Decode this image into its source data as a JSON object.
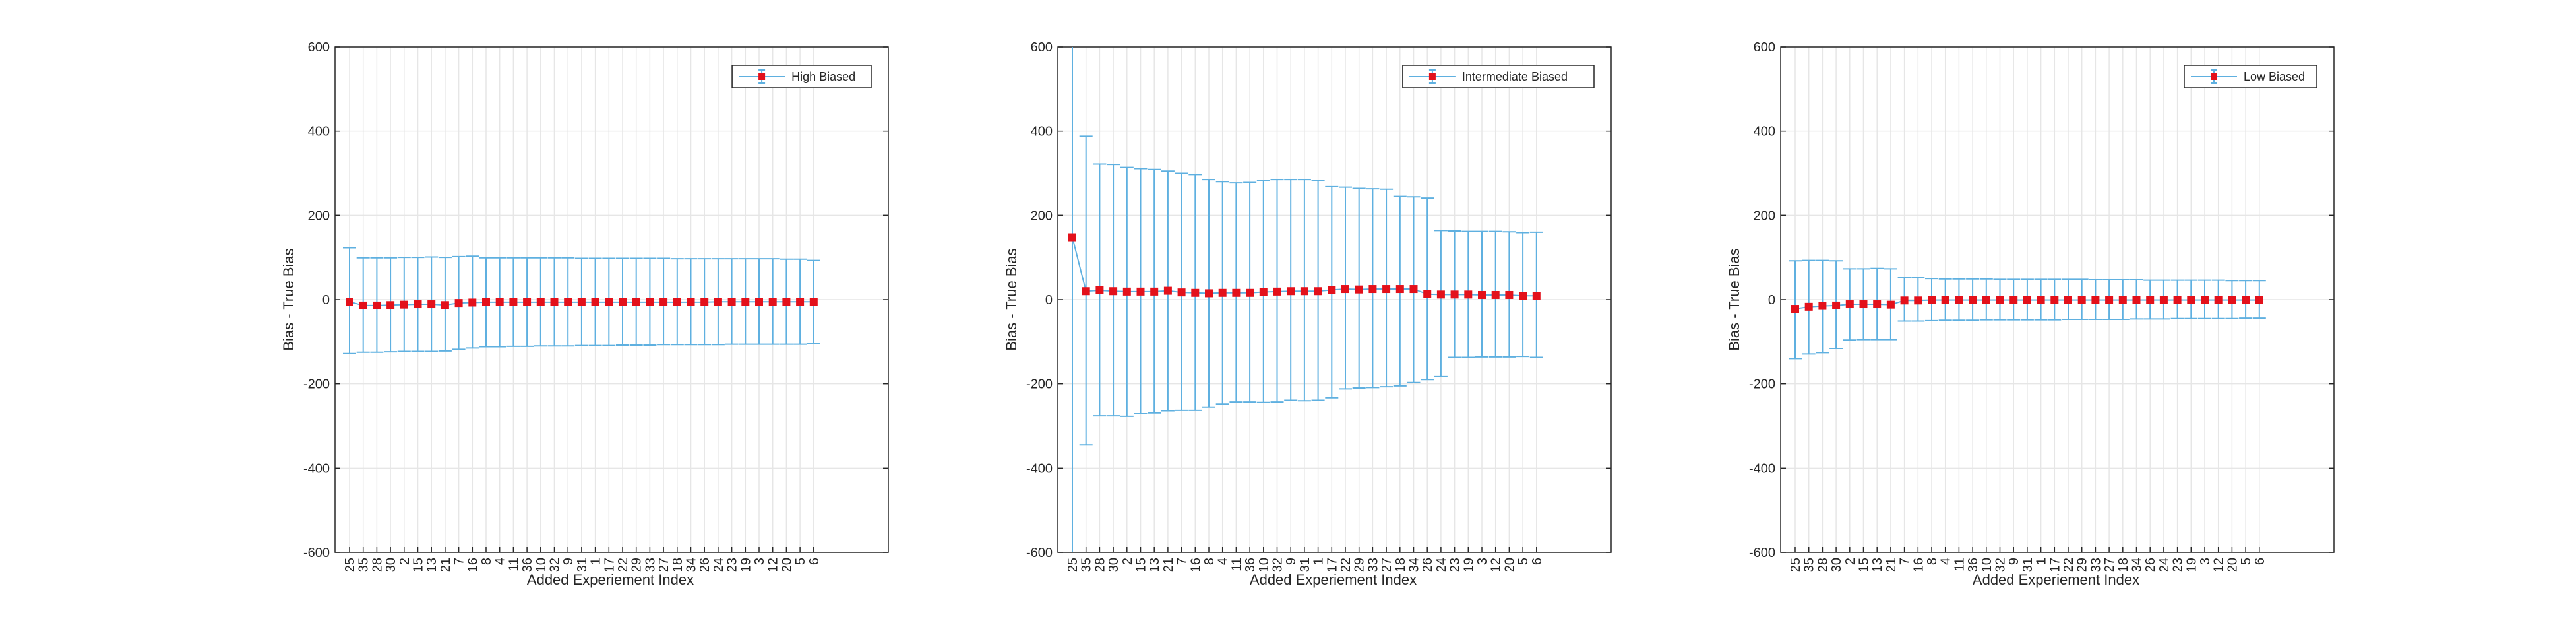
{
  "chart_data": [
    {
      "type": "errorbar-line",
      "title": "",
      "xlabel": "Added Experiement Index",
      "ylabel": "Bias - True Bias",
      "ylim": [
        -600,
        600
      ],
      "yticks": [
        -600,
        -400,
        -200,
        0,
        200,
        400,
        600
      ],
      "grid": true,
      "legend": {
        "entries": [
          "High Biased"
        ],
        "placement": "top-right"
      },
      "categories": [
        "25",
        "35",
        "28",
        "30",
        "2",
        "15",
        "13",
        "21",
        "7",
        "16",
        "8",
        "4",
        "11",
        "36",
        "10",
        "32",
        "9",
        "31",
        "1",
        "17",
        "22",
        "29",
        "33",
        "27",
        "18",
        "34",
        "26",
        "24",
        "23",
        "19",
        "3",
        "12",
        "20",
        "5",
        "6"
      ],
      "series": [
        {
          "name": "High Biased",
          "values": [
            -5,
            -14,
            -14,
            -13,
            -12,
            -11,
            -11,
            -13,
            -8,
            -7,
            -6,
            -6,
            -6,
            -6,
            -6,
            -6,
            -6,
            -6,
            -6,
            -6,
            -6,
            -6,
            -6,
            -6,
            -6,
            -6,
            -6,
            -5,
            -5,
            -5,
            -5,
            -5,
            -5,
            -5,
            -5
          ],
          "upper": [
            123,
            99,
            99,
            99,
            100,
            100,
            101,
            100,
            102,
            103,
            99,
            99,
            99,
            99,
            99,
            99,
            99,
            98,
            98,
            98,
            98,
            98,
            98,
            98,
            97,
            97,
            97,
            97,
            97,
            97,
            97,
            97,
            96,
            96,
            93
          ],
          "lower": [
            -128,
            -125,
            -125,
            -124,
            -123,
            -123,
            -123,
            -122,
            -118,
            -115,
            -112,
            -112,
            -111,
            -111,
            -110,
            -110,
            -110,
            -109,
            -109,
            -109,
            -108,
            -108,
            -108,
            -107,
            -107,
            -107,
            -107,
            -107,
            -106,
            -106,
            -106,
            -106,
            -106,
            -106,
            -105
          ]
        }
      ]
    },
    {
      "type": "errorbar-line",
      "title": "",
      "xlabel": "Added Experiement Index",
      "ylabel": "Bias - True Bias",
      "ylim": [
        -600,
        600
      ],
      "yticks": [
        -600,
        -400,
        -200,
        0,
        200,
        400,
        600
      ],
      "grid": true,
      "legend": {
        "entries": [
          "Intermediate Biased"
        ],
        "placement": "top-right"
      },
      "categories": [
        "25",
        "35",
        "28",
        "30",
        "2",
        "15",
        "13",
        "21",
        "7",
        "16",
        "8",
        "4",
        "11",
        "36",
        "10",
        "32",
        "9",
        "31",
        "1",
        "17",
        "22",
        "29",
        "33",
        "27",
        "18",
        "34",
        "26",
        "24",
        "23",
        "19",
        "3",
        "12",
        "20",
        "5",
        "6"
      ],
      "series": [
        {
          "name": "Intermediate Biased",
          "values": [
            148,
            20,
            22,
            20,
            19,
            19,
            19,
            21,
            17,
            16,
            15,
            16,
            16,
            16,
            18,
            19,
            20,
            20,
            20,
            23,
            25,
            24,
            25,
            25,
            25,
            25,
            13,
            12,
            12,
            12,
            11,
            11,
            11,
            9,
            9
          ],
          "upper": [
            620,
            388,
            322,
            321,
            314,
            311,
            309,
            305,
            300,
            297,
            285,
            280,
            277,
            278,
            282,
            285,
            285,
            285,
            282,
            268,
            267,
            264,
            263,
            262,
            245,
            244,
            241,
            164,
            163,
            162,
            162,
            162,
            161,
            159,
            160
          ],
          "lower": [
            -620,
            -345,
            -276,
            -276,
            -277,
            -271,
            -269,
            -264,
            -263,
            -263,
            -255,
            -248,
            -243,
            -243,
            -244,
            -243,
            -239,
            -240,
            -239,
            -233,
            -212,
            -210,
            -209,
            -207,
            -205,
            -197,
            -190,
            -183,
            -137,
            -137,
            -136,
            -136,
            -136,
            -135,
            -137
          ]
        }
      ]
    },
    {
      "type": "errorbar-line",
      "title": "",
      "xlabel": "Added Experiement Index",
      "ylabel": "Bias - True Bias",
      "ylim": [
        -600,
        600
      ],
      "yticks": [
        -600,
        -400,
        -200,
        0,
        200,
        400,
        600
      ],
      "grid": true,
      "legend": {
        "entries": [
          "Low Biased"
        ],
        "placement": "top-right"
      },
      "categories": [
        "25",
        "35",
        "28",
        "30",
        "2",
        "15",
        "13",
        "21",
        "7",
        "16",
        "8",
        "4",
        "11",
        "36",
        "10",
        "32",
        "9",
        "31",
        "1",
        "17",
        "22",
        "29",
        "33",
        "27",
        "18",
        "34",
        "26",
        "24",
        "23",
        "19",
        "3",
        "12",
        "20",
        "5",
        "6"
      ],
      "series": [
        {
          "name": "Low Biased",
          "values": [
            -22,
            -17,
            -15,
            -14,
            -11,
            -11,
            -11,
            -12,
            -2,
            -2,
            -1,
            -1,
            -1,
            -1,
            -1,
            -1,
            -1,
            -1,
            -1,
            -1,
            -1,
            -1,
            -1,
            -1,
            -1,
            -1,
            -1,
            -1,
            -1,
            -1,
            -1,
            -1,
            -1,
            -1,
            -1
          ],
          "upper": [
            92,
            93,
            93,
            92,
            73,
            73,
            74,
            73,
            52,
            52,
            50,
            49,
            49,
            49,
            49,
            48,
            48,
            48,
            48,
            48,
            48,
            48,
            47,
            47,
            47,
            47,
            46,
            46,
            46,
            46,
            46,
            46,
            45,
            45,
            45
          ],
          "lower": [
            -140,
            -129,
            -126,
            -116,
            -96,
            -95,
            -95,
            -95,
            -51,
            -51,
            -50,
            -49,
            -49,
            -49,
            -48,
            -48,
            -48,
            -48,
            -48,
            -48,
            -47,
            -47,
            -47,
            -47,
            -47,
            -46,
            -46,
            -46,
            -45,
            -45,
            -45,
            -45,
            -45,
            -44,
            -44
          ]
        }
      ]
    }
  ]
}
